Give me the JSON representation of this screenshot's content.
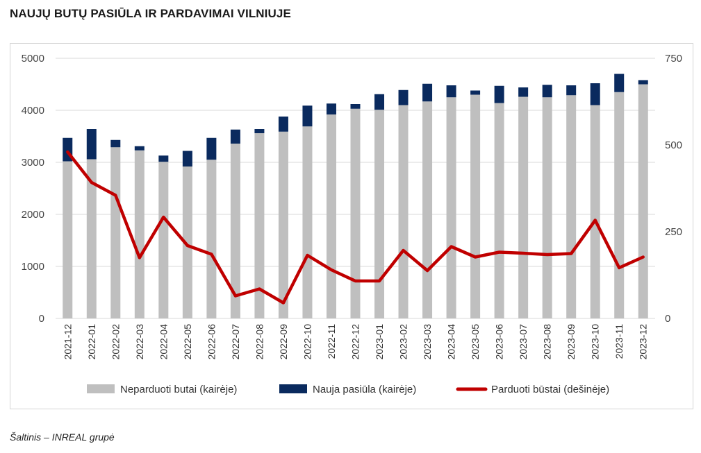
{
  "title": "NAUJŲ BUTŲ PASIŪLA IR PARDAVIMAI VILNIUJE",
  "source": "Šaltinis – INREAL grupė",
  "colors": {
    "unsold": "#bfbfbf",
    "new_offer": "#0a2a5e",
    "sold": "#c00000",
    "grid": "#d9d9d9"
  },
  "chart_data": {
    "type": "bar",
    "stacked": true,
    "categories": [
      "2021-12",
      "2022-01",
      "2022-02",
      "2022-03",
      "2022-04",
      "2022-05",
      "2022-06",
      "2022-07",
      "2022-08",
      "2022-09",
      "2022-10",
      "2022-11",
      "2022-12",
      "2023-01",
      "2023-02",
      "2023-03",
      "2023-04",
      "2023-05",
      "2023-06",
      "2023-07",
      "2023-08",
      "2023-09",
      "2023-10",
      "2023-11",
      "2023-12"
    ],
    "left_axis": {
      "ylim": [
        0,
        5000
      ],
      "ticks": [
        0,
        1000,
        2000,
        3000,
        4000,
        5000
      ]
    },
    "right_axis": {
      "ylim": [
        0,
        750
      ],
      "ticks": [
        0,
        250,
        500,
        750
      ]
    },
    "grid": true,
    "legend_position": "bottom",
    "series": [
      {
        "name": "Neparduoti butai (kairėje)",
        "type": "bar",
        "axis": "left",
        "values": [
          3020,
          3060,
          3290,
          3230,
          3010,
          2920,
          3050,
          3360,
          3560,
          3590,
          3690,
          3920,
          4030,
          4010,
          4100,
          4170,
          4250,
          4300,
          4140,
          4260,
          4250,
          4290,
          4100,
          4350,
          4500
        ]
      },
      {
        "name": "Nauja pasiūla (kairėje)",
        "type": "bar",
        "axis": "left",
        "values": [
          450,
          580,
          140,
          80,
          120,
          300,
          420,
          270,
          80,
          290,
          400,
          210,
          90,
          300,
          290,
          340,
          230,
          80,
          330,
          180,
          240,
          190,
          420,
          350,
          80
        ]
      },
      {
        "name": "Parduoti būstai (dešinėje)",
        "type": "line",
        "axis": "right",
        "values": [
          480,
          392,
          355,
          175,
          292,
          210,
          185,
          65,
          85,
          45,
          182,
          140,
          108,
          108,
          196,
          138,
          207,
          177,
          191,
          188,
          184,
          187,
          283,
          146,
          177
        ]
      }
    ]
  }
}
